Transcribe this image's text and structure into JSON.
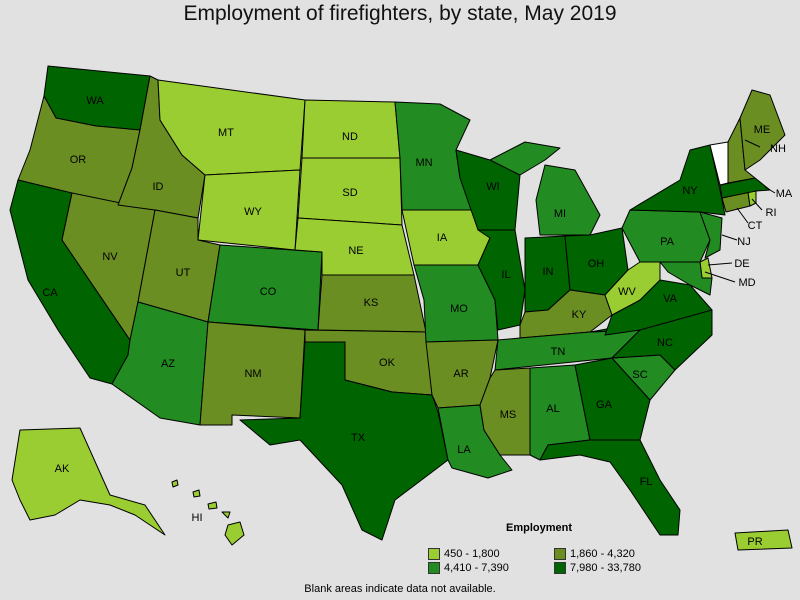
{
  "title": "Employment of firefighters, by state, May 2019",
  "legend": {
    "title": "Employment",
    "items": [
      {
        "label": "450 - 1,800",
        "color": "#9acd32"
      },
      {
        "label": "1,860 - 4,320",
        "color": "#6b8e23"
      },
      {
        "label": "4,410 - 7,390",
        "color": "#228b22"
      },
      {
        "label": "7,980 - 33,780",
        "color": "#006400"
      }
    ]
  },
  "note": "Blank areas indicate data not available.",
  "labels": {
    "WA": "WA",
    "OR": "OR",
    "CA": "CA",
    "NV": "NV",
    "ID": "ID",
    "MT": "MT",
    "WY": "WY",
    "UT": "UT",
    "AZ": "AZ",
    "CO": "CO",
    "NM": "NM",
    "ND": "ND",
    "SD": "SD",
    "NE": "NE",
    "KS": "KS",
    "OK": "OK",
    "TX": "TX",
    "MN": "MN",
    "IA": "IA",
    "MO": "MO",
    "AR": "AR",
    "LA": "LA",
    "WI": "WI",
    "IL": "IL",
    "MI": "MI",
    "IN": "IN",
    "OH": "OH",
    "KY": "KY",
    "TN": "TN",
    "MS": "MS",
    "AL": "AL",
    "GA": "GA",
    "FL": "FL",
    "SC": "SC",
    "NC": "NC",
    "VA": "VA",
    "WV": "WV",
    "PA": "PA",
    "NY": "NY",
    "ME": "ME",
    "NH": "NH",
    "MA": "MA",
    "RI": "RI",
    "CT": "CT",
    "NJ": "NJ",
    "DE": "DE",
    "MD": "MD",
    "AK": "AK",
    "HI": "HI",
    "PR": "PR"
  }
}
